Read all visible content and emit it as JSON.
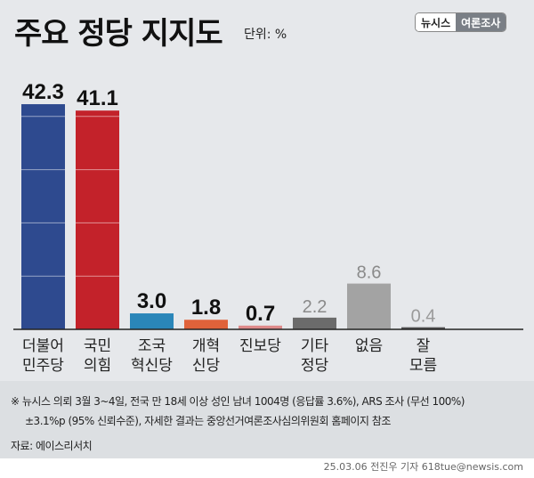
{
  "header": {
    "title": "주요 정당 지지도",
    "unit": "단위: %",
    "badge_left": "뉴시스",
    "badge_right": "여론조사"
  },
  "chart_data": {
    "type": "bar",
    "title": "주요 정당 지지도",
    "unit": "%",
    "categories": [
      "더불어\n민주당",
      "국민\n의힘",
      "조국\n혁신당",
      "개혁\n신당",
      "진보당",
      "기타\n정당",
      "없음",
      "잘\n모름"
    ],
    "values": [
      42.3,
      41.1,
      3.0,
      1.8,
      0.7,
      2.2,
      8.6,
      0.4
    ],
    "value_labels": [
      "42.3",
      "41.1",
      "3.0",
      "1.8",
      "0.7",
      "2.2",
      "8.6",
      "0.4"
    ],
    "colors": [
      "#2e4a8f",
      "#c3222a",
      "#2a86b9",
      "#e0623a",
      "#de8a8a",
      "#6b6b6b",
      "#a3a3a3",
      "#555555"
    ],
    "label_colors": [
      "#111111",
      "#111111",
      "#111111",
      "#111111",
      "#111111",
      "#8a8a8a",
      "#8a8a8a",
      "#9a9a9a"
    ],
    "ylim": [
      0,
      45
    ],
    "grid": "white lines inside bars every 10",
    "legend": "none"
  },
  "footer": {
    "note_line1": "※ 뉴시스 의뢰 3월 3~4일, 전국 만 18세 이상 성인 남녀 1004명 (응답률 3.6%), ARS 조사 (무선 100%)",
    "note_line2": "±3.1%p (95% 신뢰수준), 자세한 결과는 중앙선거여론조사심의위원회 홈페이지 참조",
    "source": "자료: 에이스리서치",
    "credit": "25.03.06 전진우 기자 618tue@newsis.com"
  }
}
